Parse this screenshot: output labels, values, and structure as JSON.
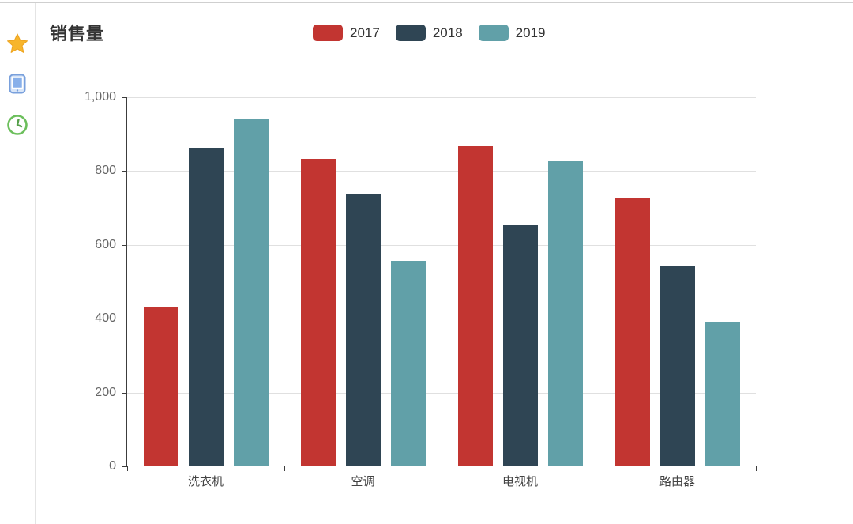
{
  "header": {
    "title": "销售量"
  },
  "sidebar": {
    "icons": [
      {
        "id": "favorite-star-icon",
        "color": "#f7b52c",
        "stroke": "#eda31f"
      },
      {
        "id": "device-tablet-icon",
        "color": "#d9e6f8",
        "stroke": "#79a0dc",
        "screen": "#88b0ea"
      },
      {
        "id": "clock-icon",
        "color": "#ffffff",
        "stroke": "#6cbf5c",
        "hands": "#55a04a"
      }
    ]
  },
  "chart_data": {
    "type": "bar",
    "title": "销售量",
    "categories": [
      "洗衣机",
      "空调",
      "电视机",
      "路由器"
    ],
    "series": [
      {
        "name": "2017",
        "color": "#c23531",
        "values": [
          430,
          830,
          865,
          725
        ]
      },
      {
        "name": "2018",
        "color": "#2f4554",
        "values": [
          860,
          735,
          650,
          540
        ]
      },
      {
        "name": "2019",
        "color": "#61a0a8",
        "values": [
          940,
          555,
          825,
          390
        ]
      }
    ],
    "xlabel": "",
    "ylabel": "",
    "ylim": [
      0,
      1000
    ],
    "ytick_interval": 200,
    "ytick_labels": [
      "0",
      "200",
      "400",
      "600",
      "800",
      "1,000"
    ],
    "grid": true,
    "legend_position": "top",
    "axis_color": "#3c3c3c",
    "gridline_color": "#e0e0e0"
  }
}
